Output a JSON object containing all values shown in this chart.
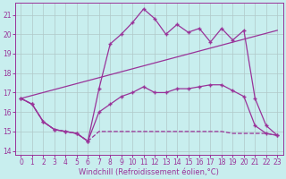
{
  "xlabel": "Windchill (Refroidissement éolien,°C)",
  "bg_color": "#c8eeee",
  "grid_color": "#b0c8c8",
  "line_color": "#993399",
  "xlim": [
    -0.5,
    23.5
  ],
  "ylim": [
    13.8,
    21.6
  ],
  "yticks": [
    14,
    15,
    16,
    17,
    18,
    19,
    20,
    21
  ],
  "xticks": [
    0,
    1,
    2,
    3,
    4,
    5,
    6,
    7,
    8,
    9,
    10,
    11,
    12,
    13,
    14,
    15,
    16,
    17,
    18,
    19,
    20,
    21,
    22,
    23
  ],
  "line1_x": [
    0,
    1,
    2,
    3,
    4,
    5,
    6,
    7,
    8,
    9,
    10,
    11,
    12,
    13,
    14,
    15,
    16,
    17,
    18,
    19,
    20,
    21,
    22,
    23
  ],
  "line1_y": [
    16.7,
    16.4,
    15.5,
    15.1,
    15.0,
    14.9,
    14.5,
    15.0,
    15.0,
    15.0,
    15.0,
    15.0,
    15.0,
    15.0,
    15.0,
    15.0,
    15.0,
    15.0,
    15.0,
    14.9,
    14.9,
    14.9,
    14.9,
    14.8
  ],
  "line2_x": [
    0,
    1,
    2,
    3,
    4,
    5,
    6,
    7,
    8,
    9,
    10,
    11,
    12,
    13,
    14,
    15,
    16,
    17,
    18,
    19,
    20,
    21,
    22,
    23
  ],
  "line2_y": [
    16.7,
    16.4,
    15.5,
    15.1,
    15.0,
    14.9,
    14.5,
    16.0,
    16.4,
    16.8,
    17.0,
    17.3,
    17.0,
    17.0,
    17.2,
    17.2,
    17.3,
    17.4,
    17.4,
    17.1,
    16.8,
    15.3,
    14.9,
    14.8
  ],
  "line3_x": [
    0,
    1,
    2,
    3,
    4,
    5,
    6,
    7,
    8,
    9,
    10,
    11,
    12,
    13,
    14,
    15,
    16,
    17,
    18,
    19,
    20,
    21,
    22,
    23
  ],
  "line3_y": [
    16.7,
    16.4,
    15.5,
    15.1,
    15.0,
    14.9,
    14.5,
    17.2,
    19.5,
    20.0,
    20.6,
    21.3,
    20.8,
    20.0,
    20.5,
    20.1,
    20.3,
    19.6,
    20.3,
    19.7,
    20.2,
    16.7,
    15.3,
    14.8
  ],
  "line4_x": [
    0,
    23
  ],
  "line4_y": [
    16.7,
    20.2
  ],
  "marker": "+",
  "markersize": 3,
  "linewidth": 0.9,
  "tick_fontsize": 5.5,
  "xlabel_fontsize": 6.0
}
